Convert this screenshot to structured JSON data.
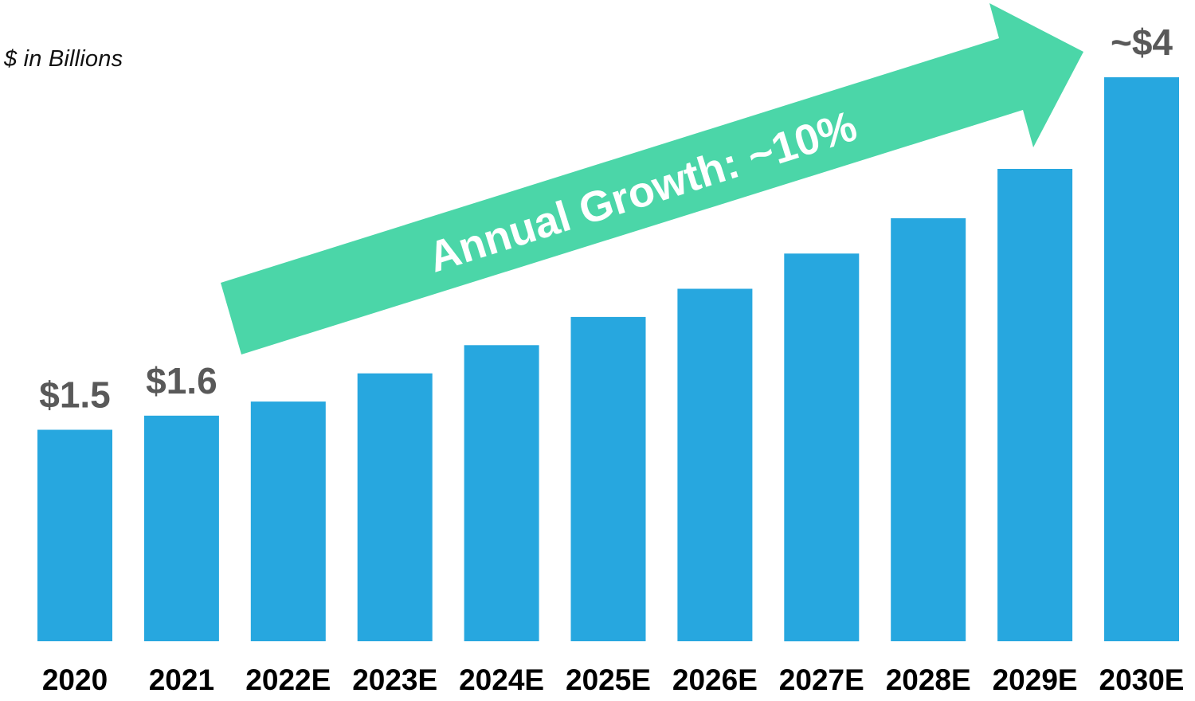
{
  "chart_data": {
    "type": "bar",
    "title": "",
    "unit_label": "$ in Billions",
    "xlabel": "",
    "ylabel": "$ in Billions",
    "categories": [
      "2020",
      "2021",
      "2022E",
      "2023E",
      "2024E",
      "2025E",
      "2026E",
      "2027E",
      "2028E",
      "2029E",
      "2030E"
    ],
    "values": [
      1.5,
      1.6,
      1.7,
      1.9,
      2.1,
      2.3,
      2.5,
      2.75,
      3.0,
      3.35,
      4.0
    ],
    "data_labels": [
      "$1.5",
      "$1.6",
      "",
      "",
      "",
      "",
      "",
      "",
      "",
      "",
      "~$4"
    ],
    "annotations": [
      {
        "type": "arrow",
        "text": "Annual Growth: ~10%",
        "color": "#4bd6a8"
      }
    ],
    "ylim": [
      0,
      4.0
    ],
    "grid": false,
    "legend": null,
    "bar_color": "#27a7df"
  },
  "colors": {
    "bar": "#27a7df",
    "arrow": "#4bd6a8",
    "value_label": "#595959",
    "category_label": "#000000",
    "arrow_text": "#ffffff"
  },
  "header": {
    "unit_label": "$ in Billions"
  },
  "arrow": {
    "label": "Annual Growth: ~10%"
  }
}
